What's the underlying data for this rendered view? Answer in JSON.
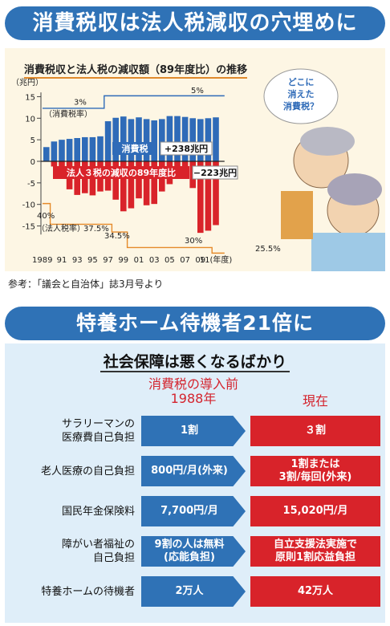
{
  "top_banner": "消費税収は法人税減収の穴埋めに",
  "chart_data": {
    "type": "bar",
    "title": "消費税収と法人税の減収額（89年度比）の推移",
    "yunit": "（兆円）",
    "ylim": [
      -17,
      16
    ],
    "yticks": [
      15,
      10,
      5,
      0,
      -5,
      -10,
      -15
    ],
    "xtick_labels": [
      "1989",
      "91",
      "93",
      "95",
      "97",
      "99",
      "01",
      "03",
      "05",
      "07",
      "09",
      "11(年度)"
    ],
    "series": [
      {
        "name": "消費税",
        "color": "#2f6bb8",
        "values": [
          3.3,
          4.6,
          5.0,
          5.2,
          5.4,
          5.6,
          5.6,
          5.8,
          9.3,
          10.1,
          10.4,
          9.8,
          10.2,
          9.8,
          9.5,
          9.8,
          10.5,
          10.5,
          10.3,
          10.0,
          9.8,
          10.0,
          10.2
        ]
      },
      {
        "name": "法人３税の減収の89年度比",
        "color": "#d9232a",
        "values": [
          0,
          -1.2,
          -3.8,
          -6.5,
          -7.8,
          -7.4,
          -7.9,
          -7.0,
          -6.8,
          -8.9,
          -11.6,
          -10.9,
          -8.6,
          -10.2,
          -9.9,
          -7.0,
          -5.3,
          -3.6,
          -3.2,
          -6.2,
          -16.6,
          -16.1,
          -14.8
        ]
      }
    ],
    "consumption_rate_label": "（消費税率）",
    "consumption_rates": [
      "3%",
      "5%"
    ],
    "corp_rate_label": "（法人税率）",
    "corp_rates": [
      "40%",
      "37.5%",
      "34.5%",
      "30%",
      "25.5%"
    ],
    "consumption_total": "+238兆円",
    "corp_total": "−223兆円",
    "speech_bubble": [
      "どこに",
      "消えた",
      "消費税？"
    ]
  },
  "source_note": "参考：「議会と自治体」誌3月号より",
  "second_banner": "特養ホーム待機者21倍に",
  "subtitle": "社会保障は悪くなるばかり",
  "column_headers": {
    "before": [
      "消費税の導入前",
      "1988年"
    ],
    "now": "現在"
  },
  "rows": [
    {
      "label": [
        "サラリーマンの",
        "医療費自己負担"
      ],
      "before": [
        "1割"
      ],
      "now": [
        "３割"
      ]
    },
    {
      "label": [
        "老人医療の自己負担"
      ],
      "before": [
        "800円/月(外来)"
      ],
      "now": [
        "1割または",
        "3割/毎回(外来)"
      ]
    },
    {
      "label": [
        "国民年金保険料"
      ],
      "before": [
        "7,700円/月"
      ],
      "now": [
        "15,020円/月"
      ]
    },
    {
      "label": [
        "障がい者福祉の",
        "自己負担"
      ],
      "before": [
        "9割の人は無料",
        "(応能負担)"
      ],
      "now": [
        "自立支援法実施で",
        "原則1割応益負担"
      ]
    },
    {
      "label": [
        "特養ホームの待機者"
      ],
      "before": [
        "2万人"
      ],
      "now": [
        "42万人"
      ]
    }
  ]
}
